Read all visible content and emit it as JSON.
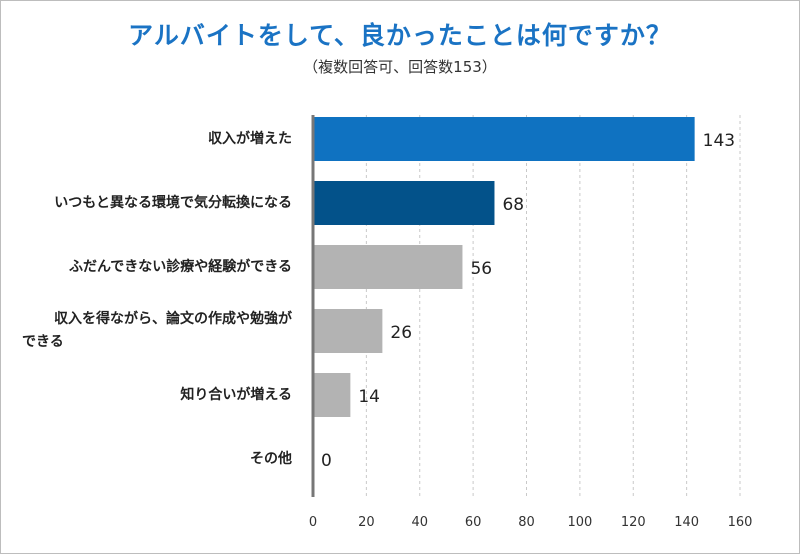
{
  "title": "アルバイトをして、良かったことは何ですか？",
  "subtitle": "（複数回答可、回答数153）",
  "chart_data": {
    "type": "bar",
    "orientation": "horizontal",
    "categories": [
      "収入が増えた",
      "いつもと異なる環境で気分転換になる",
      "ふだんできない診療や経験ができる",
      "収入を得ながら、論文の作成や勉強ができる",
      "知り合いが増える",
      "その他"
    ],
    "category_lines": [
      [
        "収入が増えた"
      ],
      [
        "いつもと異なる環境で気分転換になる"
      ],
      [
        "ふだんできない診療や経験ができる"
      ],
      [
        "収入を得ながら、論文の作成や勉強が",
        "できる"
      ],
      [
        "知り合いが増える"
      ],
      [
        "その他"
      ]
    ],
    "values": [
      143,
      68,
      56,
      26,
      14,
      0
    ],
    "bar_colors": [
      "#0f72c1",
      "#03528a",
      "#b3b3b3",
      "#b3b3b3",
      "#b3b3b3",
      "#b3b3b3"
    ],
    "xlim": [
      0,
      160
    ],
    "x_ticks": [
      0,
      20,
      40,
      60,
      80,
      100,
      120,
      140,
      160
    ],
    "grid": "vertical-dashed",
    "legend": "none",
    "xlabel": "",
    "ylabel": ""
  }
}
